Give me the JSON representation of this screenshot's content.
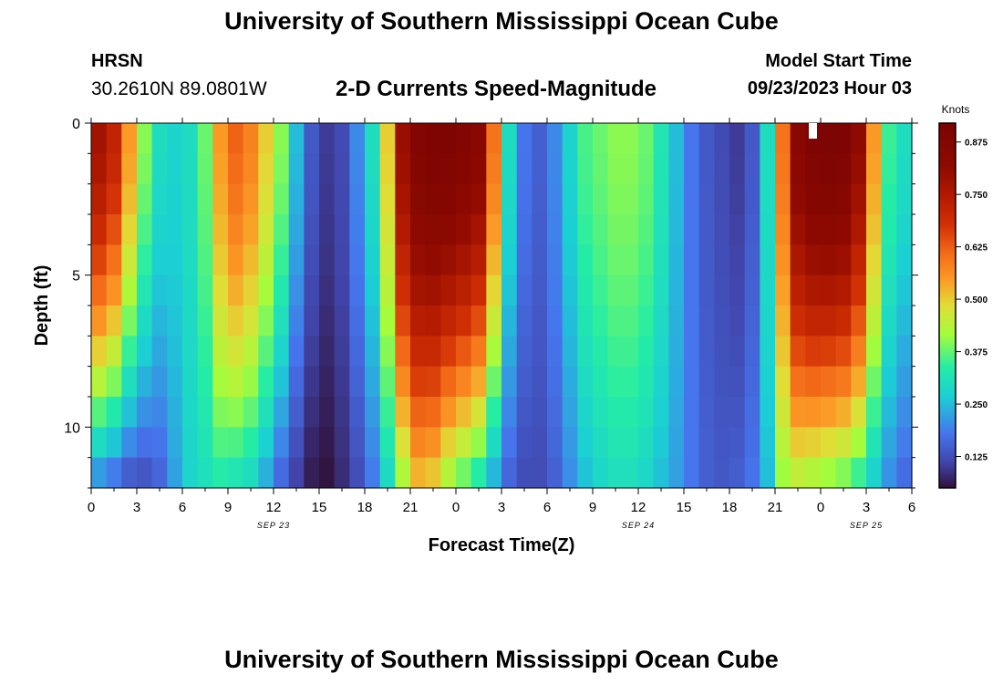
{
  "header": {
    "title": "University of Southern Mississippi Ocean Cube",
    "station": "HRSN",
    "coords": "30.2610N  89.0801W",
    "subtitle": "2-D Currents Speed-Magnitude",
    "start_label": "Model Start Time",
    "start_value": "09/23/2023 Hour 03"
  },
  "footer": {
    "title": "University of Southern Mississippi Ocean Cube"
  },
  "chart_data": {
    "type": "heatmap",
    "title": "2-D Currents Speed-Magnitude",
    "xlabel": "Forecast Time(Z)",
    "ylabel": "Depth (ft)",
    "x_range_hours": [
      0,
      54
    ],
    "x_ticks": [
      {
        "hour": 0,
        "label": "0"
      },
      {
        "hour": 3,
        "label": "3"
      },
      {
        "hour": 6,
        "label": "6"
      },
      {
        "hour": 9,
        "label": "9"
      },
      {
        "hour": 12,
        "label": "12"
      },
      {
        "hour": 15,
        "label": "15"
      },
      {
        "hour": 18,
        "label": "18"
      },
      {
        "hour": 21,
        "label": "21"
      },
      {
        "hour": 24,
        "label": "0"
      },
      {
        "hour": 27,
        "label": "3"
      },
      {
        "hour": 30,
        "label": "6"
      },
      {
        "hour": 33,
        "label": "9"
      },
      {
        "hour": 36,
        "label": "12"
      },
      {
        "hour": 39,
        "label": "15"
      },
      {
        "hour": 42,
        "label": "18"
      },
      {
        "hour": 45,
        "label": "21"
      },
      {
        "hour": 48,
        "label": "0"
      },
      {
        "hour": 51,
        "label": "3"
      },
      {
        "hour": 54,
        "label": "6"
      }
    ],
    "date_labels": [
      {
        "hour": 12,
        "label": "SEP 23"
      },
      {
        "hour": 36,
        "label": "SEP 24"
      },
      {
        "hour": 51,
        "label": "SEP 25"
      }
    ],
    "y_range_ft": [
      0,
      12
    ],
    "y_ticks": [
      0,
      5,
      10
    ],
    "time_step_hours": 1,
    "depth_levels_ft": [
      0,
      1,
      2,
      3,
      4,
      5,
      6,
      7,
      8,
      9,
      10,
      11,
      12
    ],
    "colorbar": {
      "label": "Knots",
      "min": 0.05,
      "max": 0.92,
      "ticks": [
        0.125,
        0.25,
        0.375,
        0.5,
        0.625,
        0.75,
        0.875
      ],
      "tick_labels": [
        "0.125",
        "0.250",
        "0.375",
        "0.500",
        "0.625",
        "0.750",
        "0.875"
      ]
    },
    "speed_profile_surface_knots": [
      0.78,
      0.72,
      0.55,
      0.4,
      0.3,
      0.28,
      0.3,
      0.38,
      0.55,
      0.62,
      0.58,
      0.5,
      0.4,
      0.25,
      0.14,
      0.1,
      0.12,
      0.2,
      0.3,
      0.5,
      0.8,
      0.88,
      0.9,
      0.9,
      0.88,
      0.85,
      0.6,
      0.3,
      0.18,
      0.15,
      0.2,
      0.28,
      0.36,
      0.38,
      0.4,
      0.4,
      0.38,
      0.32,
      0.25,
      0.18,
      0.14,
      0.12,
      0.1,
      0.14,
      0.3,
      0.6,
      0.85,
      0.9,
      0.91,
      0.9,
      0.82,
      0.55,
      0.35,
      0.3,
      0.28
    ],
    "speed_profile_bottom_knots": [
      0.18,
      0.15,
      0.12,
      0.12,
      0.15,
      0.22,
      0.28,
      0.3,
      0.32,
      0.3,
      0.28,
      0.22,
      0.15,
      0.1,
      0.06,
      0.05,
      0.08,
      0.12,
      0.18,
      0.28,
      0.4,
      0.5,
      0.48,
      0.4,
      0.35,
      0.3,
      0.22,
      0.15,
      0.12,
      0.12,
      0.15,
      0.2,
      0.25,
      0.28,
      0.3,
      0.3,
      0.28,
      0.25,
      0.22,
      0.18,
      0.15,
      0.14,
      0.15,
      0.18,
      0.25,
      0.4,
      0.42,
      0.4,
      0.38,
      0.36,
      0.32,
      0.26,
      0.2,
      0.16,
      0.14
    ]
  }
}
